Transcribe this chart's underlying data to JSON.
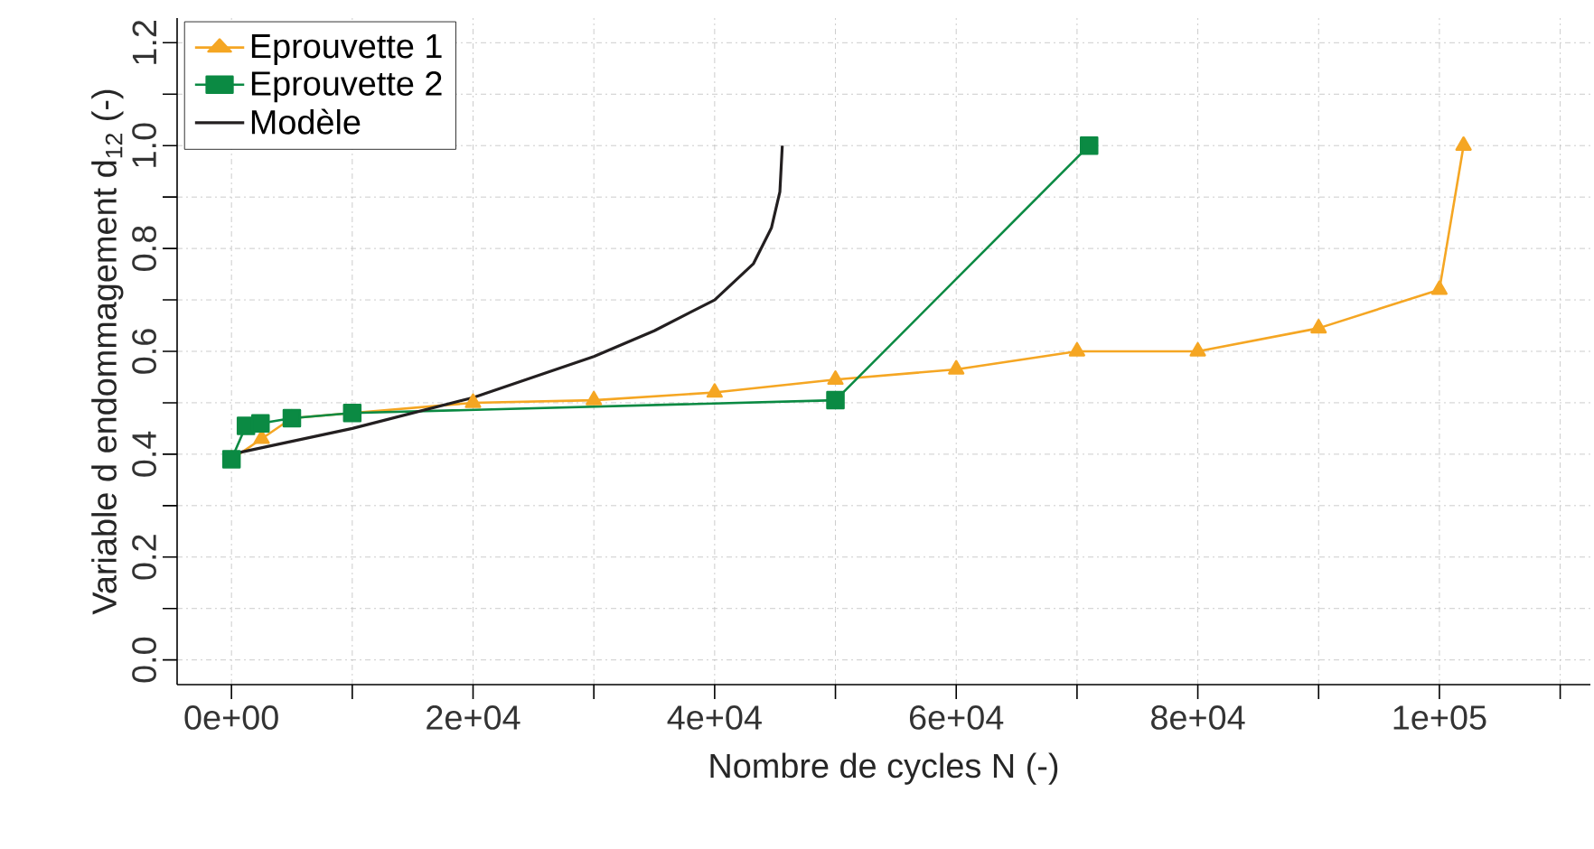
{
  "chart_data": {
    "type": "line",
    "xlabel": "Nombre de cycles  N (-)",
    "ylabel": "Variable d endommagement d$_{12}$ (-)",
    "xlim": [
      -4500,
      112500
    ],
    "ylim": [
      -0.048,
      1.248
    ],
    "xticks": [
      {
        "value": 0,
        "label": "0e+00"
      },
      {
        "value": 10000,
        "label": null
      },
      {
        "value": 20000,
        "label": "2e+04"
      },
      {
        "value": 30000,
        "label": null
      },
      {
        "value": 40000,
        "label": "4e+04"
      },
      {
        "value": 50000,
        "label": null
      },
      {
        "value": 60000,
        "label": "6e+04"
      },
      {
        "value": 70000,
        "label": null
      },
      {
        "value": 80000,
        "label": "8e+04"
      },
      {
        "value": 90000,
        "label": null
      },
      {
        "value": 100000,
        "label": "1e+05"
      },
      {
        "value": 110000,
        "label": null
      }
    ],
    "yticks": [
      {
        "value": 0,
        "label": "0.0"
      },
      {
        "value": 0.1,
        "label": null
      },
      {
        "value": 0.2,
        "label": "0.2"
      },
      {
        "value": 0.3,
        "label": null
      },
      {
        "value": 0.4,
        "label": "0.4"
      },
      {
        "value": 0.5,
        "label": null
      },
      {
        "value": 0.6,
        "label": "0.6"
      },
      {
        "value": 0.7,
        "label": null
      },
      {
        "value": 0.8,
        "label": "0.8"
      },
      {
        "value": 0.9,
        "label": null
      },
      {
        "value": 1.0,
        "label": "1.0"
      },
      {
        "value": 1.1,
        "label": null
      },
      {
        "value": 1.2,
        "label": "1.2"
      }
    ],
    "grid": true,
    "legend": "top left",
    "series": [
      {
        "name": "Eprouvette 1",
        "color": "#f5a623",
        "marker": "triangle",
        "x": [
          0,
          2500,
          5000,
          10000,
          20000,
          30000,
          40000,
          50000,
          60000,
          70000,
          80000,
          90000,
          100000,
          102000
        ],
        "values": [
          0.39,
          0.43,
          0.47,
          0.48,
          0.5,
          0.505,
          0.52,
          0.545,
          0.565,
          0.6,
          0.6,
          0.645,
          0.72,
          1.0
        ]
      },
      {
        "name": "Eprouvette 2",
        "color": "#0b8a43",
        "marker": "square",
        "x": [
          0,
          1200,
          2400,
          5000,
          10000,
          50000,
          71000
        ],
        "values": [
          0.39,
          0.455,
          0.46,
          0.47,
          0.48,
          0.505,
          1.0
        ]
      },
      {
        "name": "Modèle",
        "color": "#231f20",
        "marker": "none",
        "x": [
          0,
          10000,
          20000,
          25000,
          30000,
          35000,
          40000,
          43200,
          44700,
          45400,
          45600
        ],
        "values": [
          0.4,
          0.45,
          0.51,
          0.55,
          0.59,
          0.64,
          0.7,
          0.77,
          0.84,
          0.91,
          1.0
        ]
      }
    ]
  }
}
